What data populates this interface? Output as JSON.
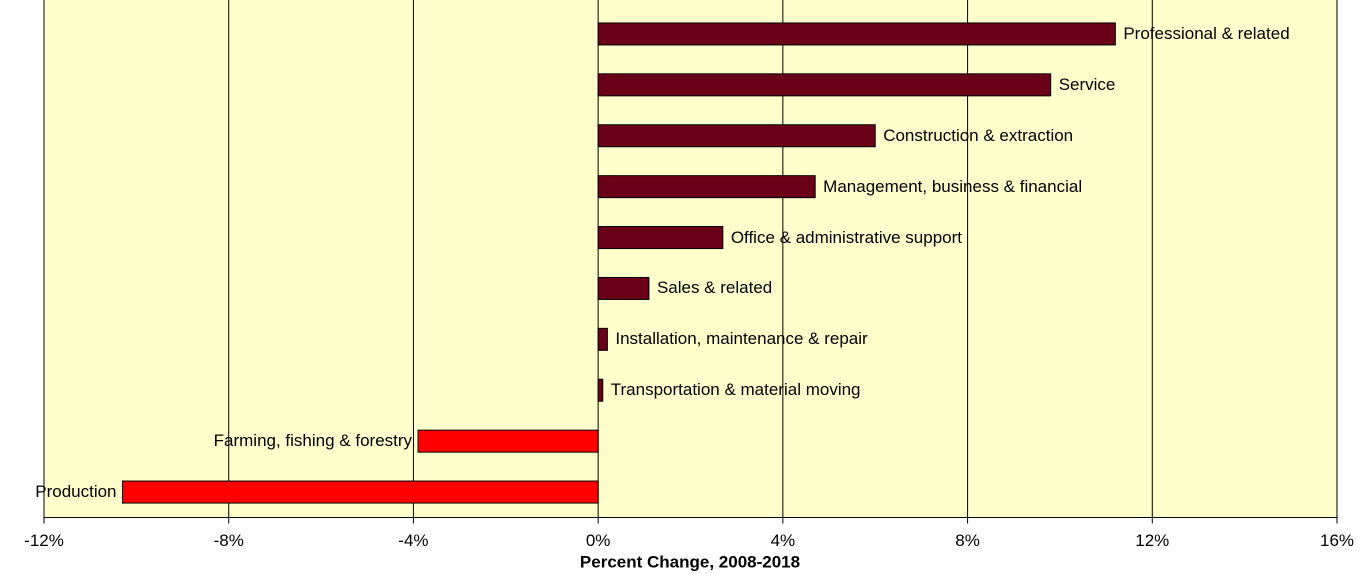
{
  "chart_data": {
    "type": "hbar",
    "x_label": "Percent Change, 2008-2018",
    "categories": [
      "Professional & related",
      "Service",
      "Construction & extraction",
      "Management, business & financial",
      "Office & administrative support",
      "Sales & related",
      "Installation, maintenance & repair",
      "Transportation & material moving",
      "Farming, fishing & forestry",
      "Production"
    ],
    "values": [
      11.2,
      9.8,
      6.0,
      4.7,
      2.7,
      1.1,
      0.2,
      0.1,
      -3.9,
      -10.3
    ],
    "colors": [
      "#6b0019",
      "#6b0019",
      "#6b0019",
      "#6b0019",
      "#6b0019",
      "#6b0019",
      "#6b0019",
      "#6b0019",
      "#ff0000",
      "#ff0000"
    ],
    "xlim": [
      -12,
      16
    ],
    "xticks": [
      {
        "value": -12,
        "label": "-12%"
      },
      {
        "value": -8,
        "label": "-8%"
      },
      {
        "value": -4,
        "label": "-4%"
      },
      {
        "value": 0,
        "label": "0%"
      },
      {
        "value": 4,
        "label": "4%"
      },
      {
        "value": 8,
        "label": "8%"
      },
      {
        "value": 12,
        "label": "12%"
      },
      {
        "value": 16,
        "label": "16%"
      }
    ],
    "grid": true,
    "background": "#ffffcc"
  }
}
